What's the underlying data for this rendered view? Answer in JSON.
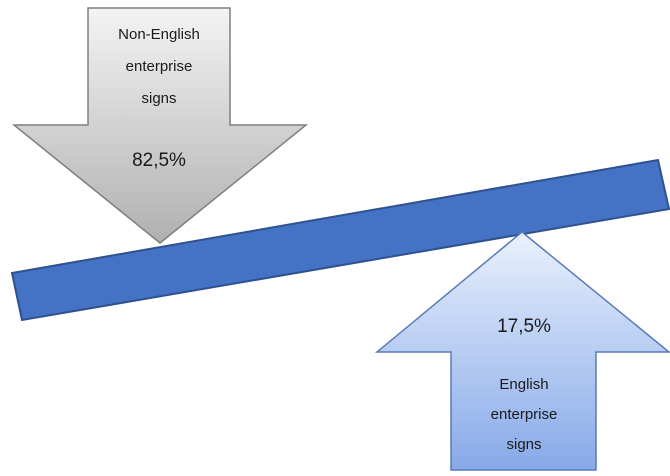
{
  "top_arrow": {
    "label_lines": [
      "Non-English",
      "enterprise",
      "signs"
    ],
    "value": "82,5%",
    "gradient": [
      "#f4f4f4",
      "#b0b0b0"
    ],
    "stroke": "#7f7f7f"
  },
  "bottom_arrow": {
    "label_lines": [
      "English",
      "enterprise",
      "signs"
    ],
    "value": "17,5%",
    "gradient": [
      "#e9f1fd",
      "#87a9e8"
    ],
    "stroke": "#5b79b8"
  },
  "beam": {
    "fill": "#4472c4",
    "stroke": "#2f528f"
  }
}
